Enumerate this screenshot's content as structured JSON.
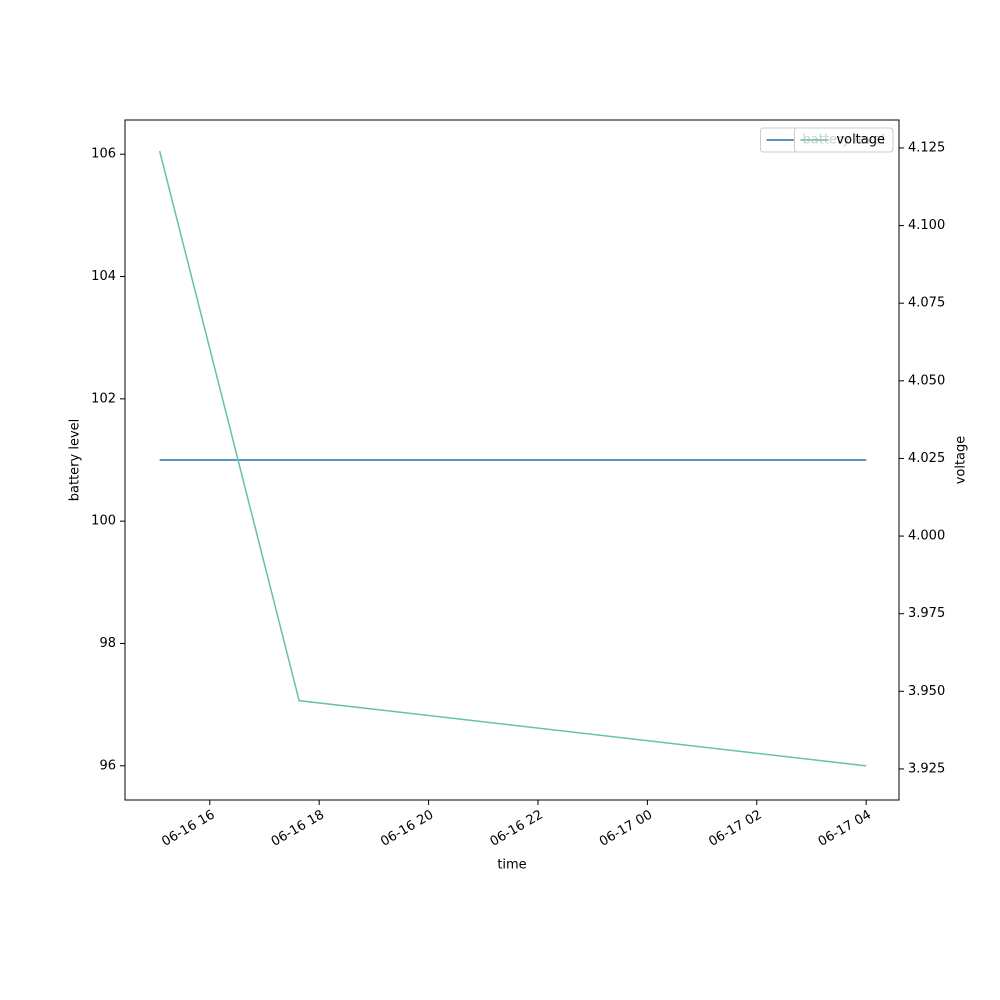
{
  "chart_data": {
    "type": "line",
    "x_label": "time",
    "y_label": "battery level",
    "y2_label": "voltage",
    "x": [
      "06-16 15:05",
      "06-16 17:38",
      "06-17 04:00"
    ],
    "xlim": [
      "06-16 14:27",
      "06-17 04:36"
    ],
    "xticks": [
      {
        "value": "06-16 16:00",
        "label": "06-16 16"
      },
      {
        "value": "06-16 18:00",
        "label": "06-16 18"
      },
      {
        "value": "06-16 20:00",
        "label": "06-16 20"
      },
      {
        "value": "06-16 22:00",
        "label": "06-16 22"
      },
      {
        "value": "06-17 00:00",
        "label": "06-17 00"
      },
      {
        "value": "06-17 02:00",
        "label": "06-17 02"
      },
      {
        "value": "06-17 04:00",
        "label": "06-17 04"
      }
    ],
    "ylim": [
      95.44,
      106.56
    ],
    "yticks": [
      96,
      98,
      100,
      102,
      104,
      106
    ],
    "y2lim": [
      3.915,
      4.134
    ],
    "y2ticks": [
      3.925,
      {
        "value": 3.95,
        "label": "3.950"
      },
      3.975,
      {
        "value": 4.0,
        "label": "4.000"
      },
      4.025,
      {
        "value": 4.05,
        "label": "4.050"
      },
      4.075,
      {
        "value": 4.1,
        "label": "4.100"
      },
      4.125
    ],
    "legend": "upper right",
    "series": [
      {
        "name": "battery level",
        "color": "#1f77b4",
        "values": [
          101,
          101,
          101
        ]
      },
      {
        "name": "voltage",
        "color": "#66c2a5",
        "axis": "y2",
        "values": [
          4.124,
          3.947,
          3.926
        ]
      }
    ]
  }
}
